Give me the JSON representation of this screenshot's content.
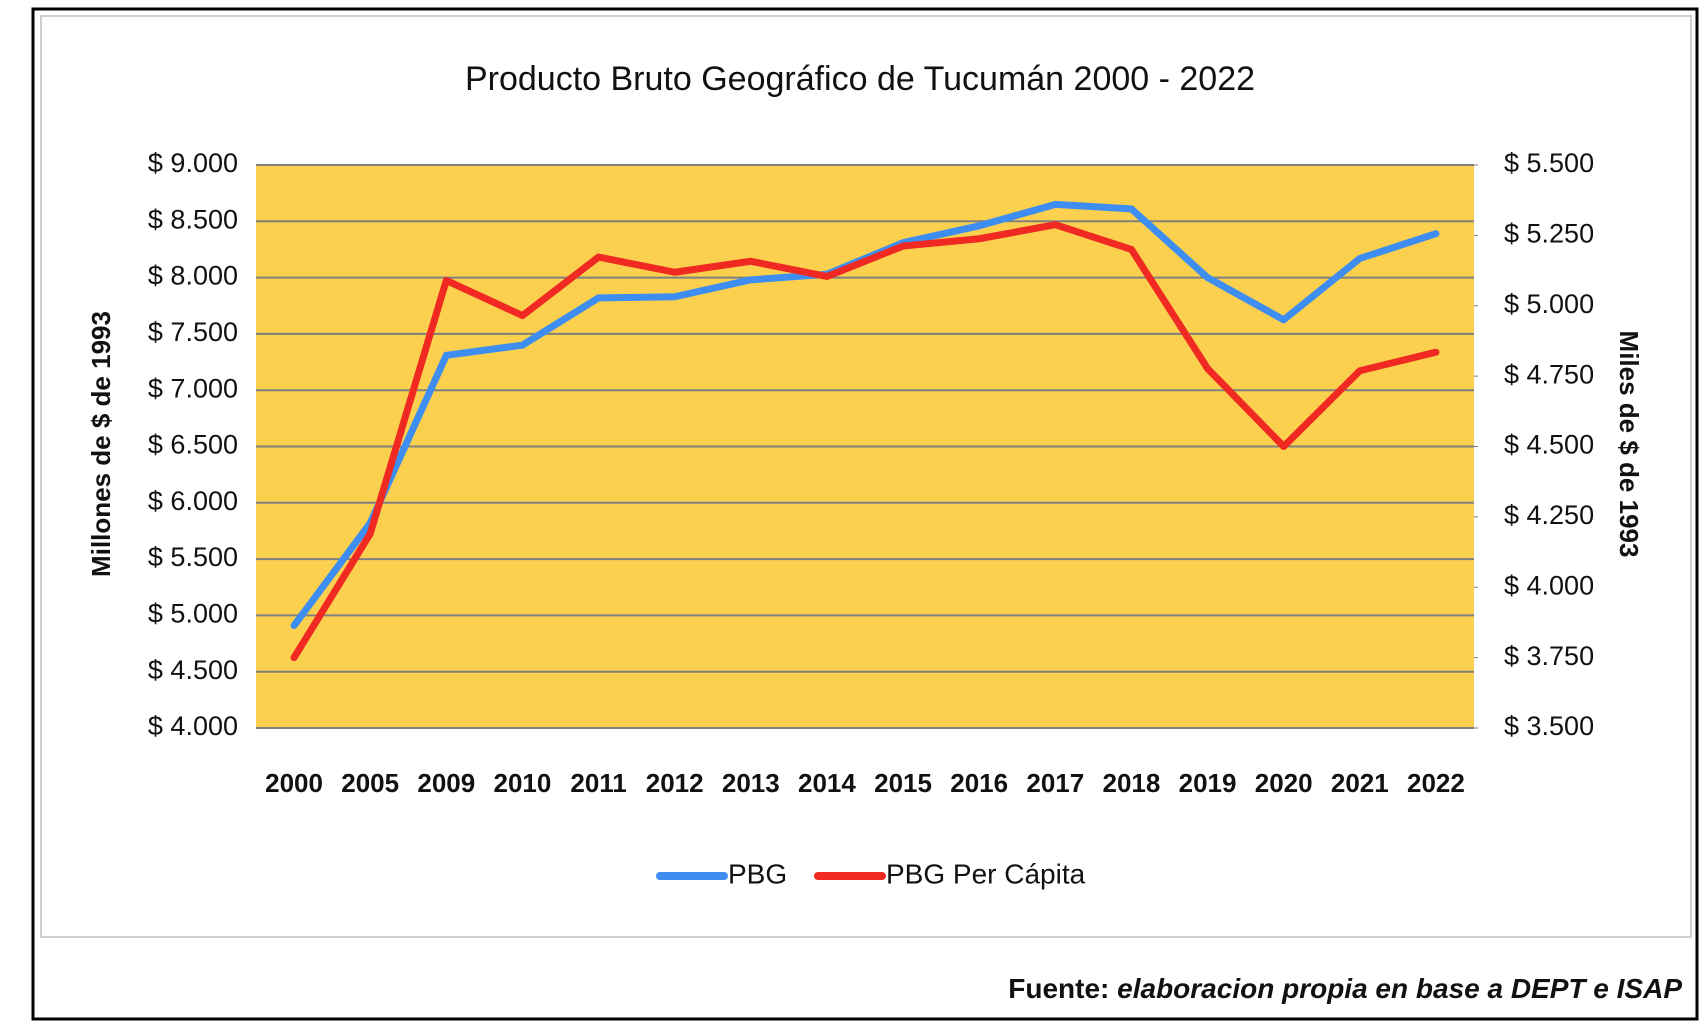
{
  "chart_data": {
    "type": "line",
    "title": "Producto Bruto Geográfico de Tucumán  2000 - 2022",
    "y_label": "Millones de $ de 1993",
    "y2_label": "Miles de $ de 1993",
    "source_label": "Fuente:",
    "source_text": "elaboracion propia en base a DEPT e ISAP",
    "categories": [
      "2000",
      "2005",
      "2009",
      "2010",
      "2011",
      "2012",
      "2013",
      "2014",
      "2015",
      "2016",
      "2017",
      "2018",
      "2019",
      "2020",
      "2021",
      "2022"
    ],
    "series": [
      {
        "name": "PBG",
        "color": "#3d8ef0",
        "axis": "y",
        "values": [
          4910,
          5820,
          7310,
          7400,
          7820,
          7830,
          7980,
          8030,
          8310,
          8460,
          8650,
          8610,
          8000,
          7625,
          8170,
          8390
        ]
      },
      {
        "name": "PBG Per Cápita",
        "color": "#f02a22",
        "axis": "y2",
        "values": [
          3750,
          4190,
          5090,
          4965,
          5173,
          5119,
          5158,
          5104,
          5212,
          5238,
          5288,
          5200,
          4777,
          4500,
          4769,
          4835
        ]
      }
    ],
    "ylim": [
      4000,
      9000
    ],
    "yticks": [
      {
        "value": 4000,
        "label": "$ 4.000"
      },
      {
        "value": 4500,
        "label": "$ 4.500"
      },
      {
        "value": 5000,
        "label": "$ 5.000"
      },
      {
        "value": 5500,
        "label": "$ 5.500"
      },
      {
        "value": 6000,
        "label": "$ 6.000"
      },
      {
        "value": 6500,
        "label": "$ 6.500"
      },
      {
        "value": 7000,
        "label": "$ 7.000"
      },
      {
        "value": 7500,
        "label": "$ 7.500"
      },
      {
        "value": 8000,
        "label": "$ 8.000"
      },
      {
        "value": 8500,
        "label": "$ 8.500"
      },
      {
        "value": 9000,
        "label": "$ 9.000"
      }
    ],
    "y2lim": [
      3500,
      5500
    ],
    "y2ticks": [
      {
        "value": 3500,
        "label": "$ 3.500"
      },
      {
        "value": 3750,
        "label": "$ 3.750"
      },
      {
        "value": 4000,
        "label": "$ 4.000"
      },
      {
        "value": 4250,
        "label": "$ 4.250"
      },
      {
        "value": 4500,
        "label": "$ 4.500"
      },
      {
        "value": 4750,
        "label": "$ 4.750"
      },
      {
        "value": 5000,
        "label": "$ 5.000"
      },
      {
        "value": 5250,
        "label": "$ 5.250"
      },
      {
        "value": 5500,
        "label": "$ 5.500"
      }
    ],
    "grid": true,
    "plot_background": "#fcd04f",
    "legend": "bottom"
  }
}
